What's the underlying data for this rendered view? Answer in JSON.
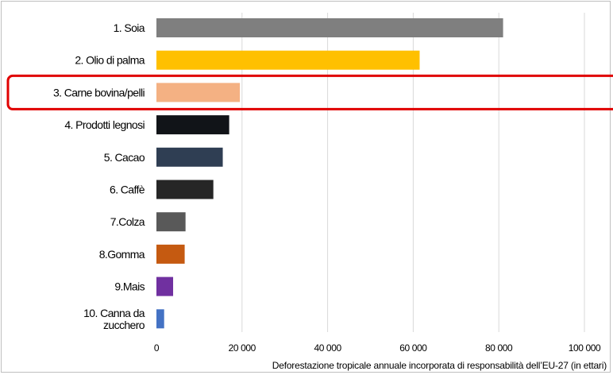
{
  "chart_data": {
    "type": "bar",
    "orientation": "horizontal",
    "categories": [
      "1. Soia",
      "2. Olio di palma",
      "3. Carne bovina/pelli",
      "4. Prodotti legnosi",
      "5. Cacao",
      "6. Caffè",
      "7.Colza",
      "8.Gomma",
      "9.Mais",
      "10. Canna da zucchero"
    ],
    "category_lines": [
      [
        "1. Soia"
      ],
      [
        "2. Olio di palma"
      ],
      [
        "3. Carne bovina/pelli"
      ],
      [
        "4. Prodotti legnosi"
      ],
      [
        "5. Cacao"
      ],
      [
        "6. Caffè"
      ],
      [
        "7.Colza"
      ],
      [
        "8.Gomma"
      ],
      [
        "9.Mais"
      ],
      [
        "10. Canna da",
        "zucchero"
      ]
    ],
    "values": [
      81000,
      61500,
      19500,
      17000,
      15500,
      13300,
      6800,
      6600,
      3900,
      1800
    ],
    "colors": [
      "#7f7f7f",
      "#ffc000",
      "#f4b183",
      "#111418",
      "#2f3e53",
      "#262626",
      "#595959",
      "#c55a11",
      "#7030a0",
      "#4472c4"
    ],
    "highlight": {
      "category_index": 2,
      "color": "#e00000"
    },
    "xlim": [
      0,
      100000
    ],
    "xticks": [
      0,
      20000,
      40000,
      60000,
      80000,
      100000
    ],
    "xtick_labels": [
      "0",
      "20 000",
      "40 000",
      "60 000",
      "80 000",
      "100 000"
    ],
    "xlabel": "Deforestazione tropicale annuale incorporata di responsabilità dell’EU-27 (in ettari)",
    "gridlines": "vertical",
    "grid_color": "#d9d9d9",
    "legend": "none"
  }
}
